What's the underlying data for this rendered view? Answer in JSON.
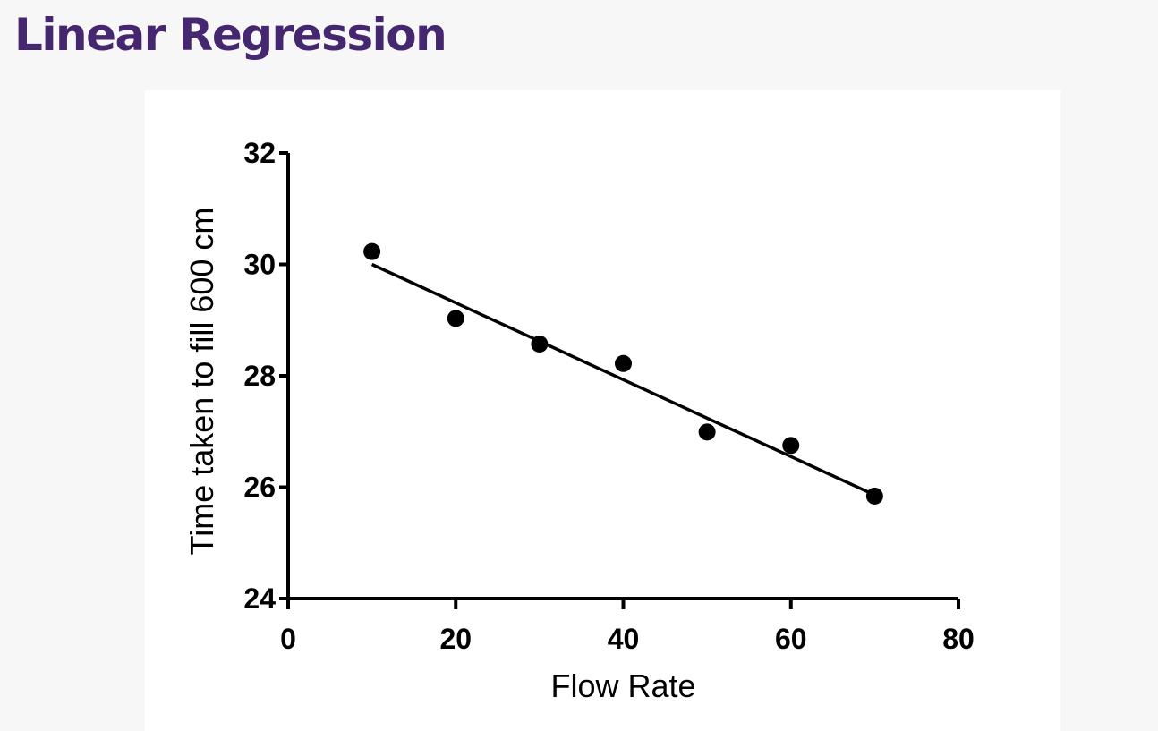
{
  "page": {
    "title": "Linear Regression"
  },
  "colors": {
    "title": "#44276f",
    "ink": "#000000",
    "card_bg": "#ffffff",
    "page_bg": "#f7f7f7"
  },
  "chart_data": {
    "type": "scatter",
    "title": "",
    "xlabel": "Flow Rate",
    "ylabel": "Time taken to fill 600 cm",
    "xlim": [
      0,
      80
    ],
    "ylim": [
      24,
      32
    ],
    "x_ticks": [
      0,
      20,
      40,
      60,
      80
    ],
    "y_ticks": [
      24,
      26,
      28,
      30,
      32
    ],
    "grid": false,
    "legend": "none",
    "series": [
      {
        "x": [
          10,
          20,
          30,
          40,
          50,
          60,
          70
        ],
        "y": [
          30.23,
          29.03,
          28.57,
          28.22,
          26.99,
          26.75,
          25.84
        ]
      }
    ],
    "regression_line": {
      "x": [
        10,
        70
      ],
      "y": [
        30.0,
        25.86
      ]
    }
  }
}
